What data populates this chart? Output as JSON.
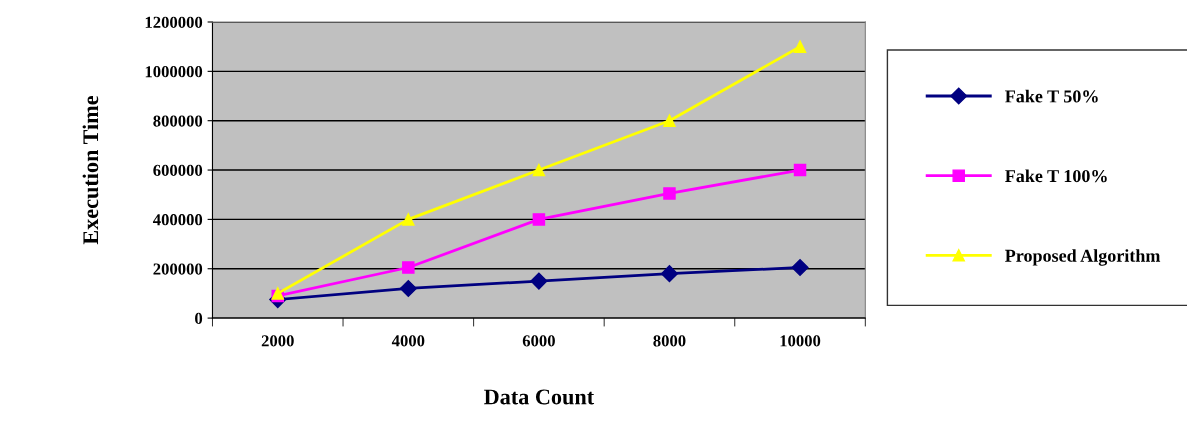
{
  "chart_data": {
    "type": "line",
    "xlabel": "Data Count",
    "ylabel": "Execution Time",
    "categories": [
      "2000",
      "4000",
      "6000",
      "8000",
      "10000"
    ],
    "series": [
      {
        "name": "Fake T 50%",
        "color": "#000080",
        "marker": "diamond",
        "values": [
          75000,
          120000,
          150000,
          180000,
          205000
        ]
      },
      {
        "name": "Fake T 100%",
        "color": "#ff00ff",
        "marker": "square",
        "values": [
          90000,
          205000,
          400000,
          505000,
          600000
        ]
      },
      {
        "name": "Proposed Algorithm",
        "color": "#ffff00",
        "marker": "triangle",
        "values": [
          100000,
          400000,
          600000,
          800000,
          1100000
        ]
      }
    ],
    "ylim": [
      0,
      1200000
    ],
    "yticks": [
      0,
      200000,
      400000,
      600000,
      800000,
      1000000,
      1200000
    ],
    "grid": "y",
    "legend": "right",
    "line_style": "solid"
  }
}
